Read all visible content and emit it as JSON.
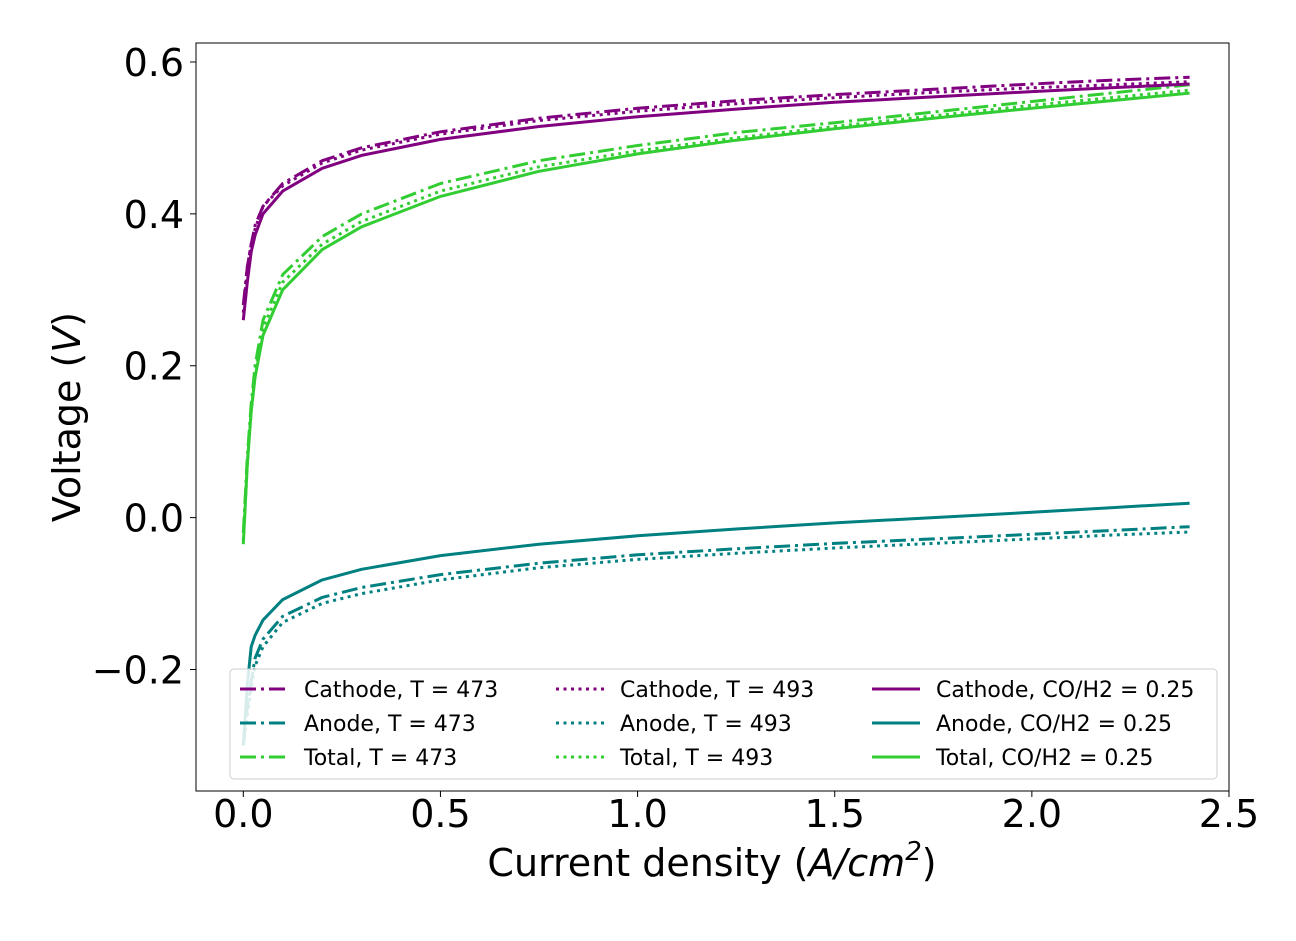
{
  "chart_data": {
    "type": "line",
    "title": "",
    "xlabel": "Current density",
    "xlabel_unit_num": "A/cm",
    "xlabel_unit_exp": "2",
    "ylabel": "Voltage",
    "ylabel_unit": "V",
    "xlim": [
      -0.12,
      2.5
    ],
    "ylim": [
      -0.36,
      0.625
    ],
    "xticks": [
      0.0,
      0.5,
      1.0,
      1.5,
      2.0,
      2.5
    ],
    "xtick_labels": [
      "0.0",
      "0.5",
      "1.0",
      "1.5",
      "2.0",
      "2.5"
    ],
    "yticks": [
      -0.2,
      0.0,
      0.2,
      0.4,
      0.6
    ],
    "ytick_labels": [
      "−0.2",
      "0.0",
      "0.2",
      "0.4",
      "0.6"
    ],
    "grid": false,
    "legend_position": "lower-right",
    "legend_columns": 3,
    "colors": {
      "cathode": "#800080",
      "anode": "#008080",
      "total": "#32cd32"
    },
    "series": [
      {
        "name": "Cathode, T = 473",
        "role": "cathode",
        "style": "dashdot",
        "x": [
          0.0,
          0.01,
          0.02,
          0.03,
          0.05,
          0.1,
          0.2,
          0.3,
          0.5,
          0.75,
          1.0,
          1.25,
          1.5,
          1.75,
          2.0,
          2.2,
          2.4
        ],
        "y": [
          0.28,
          0.33,
          0.36,
          0.385,
          0.41,
          0.44,
          0.47,
          0.487,
          0.508,
          0.526,
          0.539,
          0.549,
          0.557,
          0.564,
          0.571,
          0.576,
          0.58
        ]
      },
      {
        "name": "Anode, T = 473",
        "role": "anode",
        "style": "dashdot",
        "x": [
          0.0,
          0.01,
          0.02,
          0.03,
          0.05,
          0.1,
          0.2,
          0.3,
          0.5,
          0.75,
          1.0,
          1.25,
          1.5,
          1.75,
          2.0,
          2.2,
          2.4
        ],
        "y": [
          -0.3,
          -0.25,
          -0.215,
          -0.185,
          -0.16,
          -0.13,
          -0.105,
          -0.092,
          -0.075,
          -0.06,
          -0.049,
          -0.041,
          -0.034,
          -0.028,
          -0.022,
          -0.017,
          -0.012
        ]
      },
      {
        "name": "Total, T = 473",
        "role": "total",
        "style": "dashdot",
        "x": [
          0.0,
          0.01,
          0.02,
          0.03,
          0.05,
          0.1,
          0.2,
          0.3,
          0.5,
          0.75,
          1.0,
          1.25,
          1.5,
          1.75,
          2.0,
          2.2,
          2.4
        ],
        "y": [
          -0.02,
          0.08,
          0.15,
          0.2,
          0.26,
          0.32,
          0.37,
          0.4,
          0.44,
          0.47,
          0.49,
          0.507,
          0.52,
          0.534,
          0.548,
          0.559,
          0.57
        ]
      },
      {
        "name": "Cathode, T = 493",
        "role": "cathode",
        "style": "dotted",
        "x": [
          0.0,
          0.01,
          0.02,
          0.03,
          0.05,
          0.1,
          0.2,
          0.3,
          0.5,
          0.75,
          1.0,
          1.25,
          1.5,
          1.75,
          2.0,
          2.2,
          2.4
        ],
        "y": [
          0.27,
          0.33,
          0.36,
          0.38,
          0.41,
          0.437,
          0.467,
          0.484,
          0.505,
          0.523,
          0.535,
          0.545,
          0.553,
          0.56,
          0.566,
          0.57,
          0.574
        ]
      },
      {
        "name": "Anode, T = 493",
        "role": "anode",
        "style": "dotted",
        "x": [
          0.0,
          0.01,
          0.02,
          0.03,
          0.05,
          0.1,
          0.2,
          0.3,
          0.5,
          0.75,
          1.0,
          1.25,
          1.5,
          1.75,
          2.0,
          2.2,
          2.4
        ],
        "y": [
          -0.3,
          -0.26,
          -0.225,
          -0.195,
          -0.17,
          -0.138,
          -0.113,
          -0.1,
          -0.082,
          -0.066,
          -0.055,
          -0.047,
          -0.04,
          -0.034,
          -0.028,
          -0.023,
          -0.019
        ]
      },
      {
        "name": "Total, T = 493",
        "role": "total",
        "style": "dotted",
        "x": [
          0.0,
          0.01,
          0.02,
          0.03,
          0.05,
          0.1,
          0.2,
          0.3,
          0.5,
          0.75,
          1.0,
          1.25,
          1.5,
          1.75,
          2.0,
          2.2,
          2.4
        ],
        "y": [
          -0.03,
          0.07,
          0.14,
          0.19,
          0.25,
          0.31,
          0.36,
          0.39,
          0.43,
          0.462,
          0.483,
          0.5,
          0.515,
          0.529,
          0.543,
          0.553,
          0.563
        ]
      },
      {
        "name": "Cathode, CO/H2 = 0.25",
        "role": "cathode",
        "style": "solid",
        "x": [
          0.0,
          0.01,
          0.02,
          0.03,
          0.05,
          0.1,
          0.2,
          0.3,
          0.5,
          0.75,
          1.0,
          1.25,
          1.5,
          1.75,
          2.0,
          2.2,
          2.4
        ],
        "y": [
          0.26,
          0.31,
          0.35,
          0.372,
          0.4,
          0.43,
          0.46,
          0.477,
          0.498,
          0.515,
          0.528,
          0.538,
          0.547,
          0.554,
          0.561,
          0.566,
          0.571
        ]
      },
      {
        "name": "Anode, CO/H2 = 0.25",
        "role": "anode",
        "style": "solid",
        "x": [
          0.0,
          0.01,
          0.02,
          0.03,
          0.05,
          0.1,
          0.2,
          0.3,
          0.5,
          0.75,
          1.0,
          1.25,
          1.5,
          1.75,
          2.0,
          2.2,
          2.4
        ],
        "y": [
          -0.3,
          -0.22,
          -0.17,
          -0.155,
          -0.135,
          -0.108,
          -0.082,
          -0.068,
          -0.05,
          -0.035,
          -0.024,
          -0.015,
          -0.007,
          0.0,
          0.007,
          0.013,
          0.019
        ]
      },
      {
        "name": "Total, CO/H2 = 0.25",
        "role": "total",
        "style": "solid",
        "x": [
          0.0,
          0.01,
          0.02,
          0.03,
          0.05,
          0.1,
          0.2,
          0.3,
          0.5,
          0.75,
          1.0,
          1.25,
          1.5,
          1.75,
          2.0,
          2.2,
          2.4
        ],
        "y": [
          -0.035,
          0.07,
          0.14,
          0.185,
          0.24,
          0.3,
          0.353,
          0.383,
          0.423,
          0.456,
          0.479,
          0.497,
          0.512,
          0.526,
          0.539,
          0.549,
          0.559
        ]
      }
    ]
  }
}
